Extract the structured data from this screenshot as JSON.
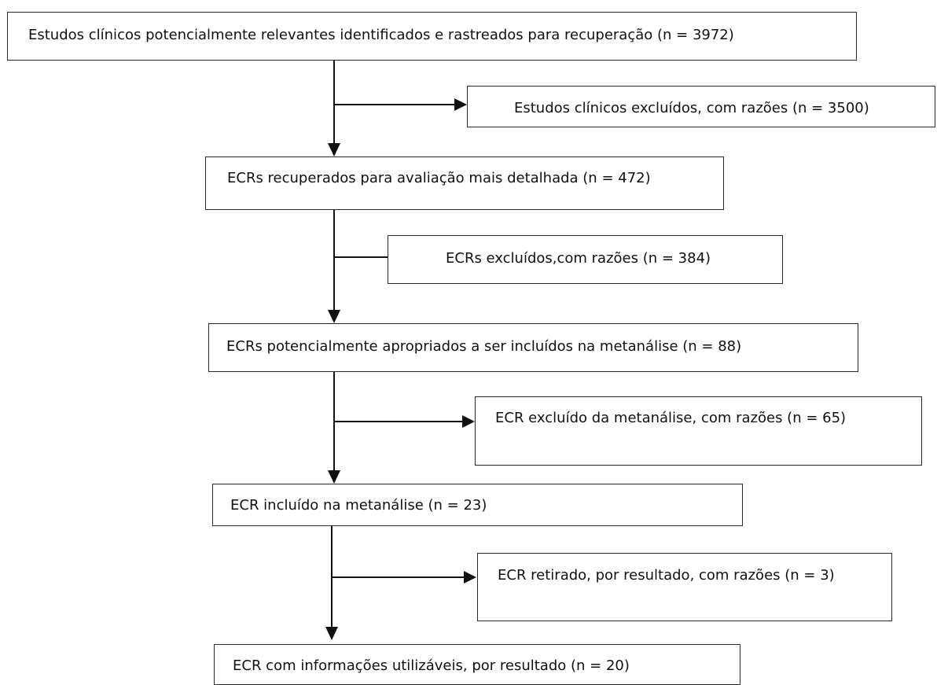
{
  "flowchart": {
    "steps": {
      "identified": "Estudos clínicos potencialmente relevantes identificados e rastreados para recuperação (n =  3972)",
      "excluded_studies": "Estudos clínicos excluídos, com razões (n = 3500)",
      "retrieved": "ECRs recuperados para avaliação mais detalhada (n = 472)",
      "excluded_rcts": "ECRs excluídos,com razões (n = 384)",
      "potentially_appropriate": "ECRs potencialmente apropriados a ser incluídos na metanálise (n = 88)",
      "excluded_meta": "ECR excluído da metanálise, com razões (n = 65)",
      "included_meta": "ECR incluído na metanálise (n = 23)",
      "withdrawn": "ECR retirado, por resultado, com razões (n = 3)",
      "usable_info": "ECR com informações utilizáveis, por resultado (n = 20)"
    }
  }
}
